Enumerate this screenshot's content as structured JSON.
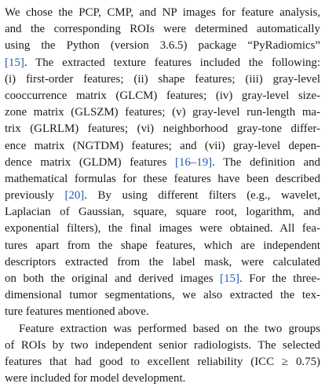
{
  "paragraphs": [
    {
      "indent": false,
      "lines": [
        {
          "justify": true,
          "segments": [
            {
              "t": "We chose the PCP, CMP, and NP images for feature analysis,"
            }
          ]
        },
        {
          "justify": true,
          "segments": [
            {
              "t": "and the corresponding ROIs were determined automatically"
            }
          ]
        },
        {
          "justify": true,
          "segments": [
            {
              "t": "using the Python (version 3.6.5) package “PyRadiomics”"
            }
          ]
        },
        {
          "justify": true,
          "segments": [
            {
              "t": "[15]",
              "cite": true
            },
            {
              "t": ". The extracted texture features included the following:"
            }
          ]
        },
        {
          "justify": true,
          "segments": [
            {
              "t": "(i) first-order features; (ii) shape features; (iii) gray-level"
            }
          ]
        },
        {
          "justify": true,
          "segments": [
            {
              "t": "cooccurrence matrix (GLCM) features; (iv) gray-level size-"
            }
          ]
        },
        {
          "justify": true,
          "segments": [
            {
              "t": "zone matrix (GLSZM) features; (v) gray-level run-length ma-"
            }
          ]
        },
        {
          "justify": true,
          "segments": [
            {
              "t": "trix (GLRLM) features; (vi) neighborhood gray-tone differ-"
            }
          ]
        },
        {
          "justify": true,
          "segments": [
            {
              "t": "ence matrix (NGTDM) features; and (vii) gray-level depen-"
            }
          ]
        },
        {
          "justify": true,
          "segments": [
            {
              "t": "dence matrix (GLDM) features "
            },
            {
              "t": "[16–19]",
              "cite": true
            },
            {
              "t": ". The definition and"
            }
          ]
        },
        {
          "justify": true,
          "segments": [
            {
              "t": "mathematical formulas for these features have been described"
            }
          ]
        },
        {
          "justify": true,
          "segments": [
            {
              "t": "previously "
            },
            {
              "t": "[20]",
              "cite": true
            },
            {
              "t": ". By using different filters (e.g., wavelet,"
            }
          ]
        },
        {
          "justify": true,
          "segments": [
            {
              "t": "Laplacian of Gaussian, square, square root, logarithm, and"
            }
          ]
        },
        {
          "justify": true,
          "segments": [
            {
              "t": "exponential filters), the final images were obtained. All fea-"
            }
          ]
        },
        {
          "justify": true,
          "segments": [
            {
              "t": "tures apart from the shape features, which are independent"
            }
          ]
        },
        {
          "justify": true,
          "segments": [
            {
              "t": "descriptors extracted from the label mask, were calculated"
            }
          ]
        },
        {
          "justify": true,
          "segments": [
            {
              "t": "on both the original and derived images "
            },
            {
              "t": "[15]",
              "cite": true
            },
            {
              "t": ". For the three-"
            }
          ]
        },
        {
          "justify": true,
          "segments": [
            {
              "t": "dimensional tumor segmentations, we also extracted the tex-"
            }
          ]
        },
        {
          "justify": false,
          "segments": [
            {
              "t": "ture features mentioned above."
            }
          ]
        }
      ]
    },
    {
      "indent": true,
      "lines": [
        {
          "justify": true,
          "segments": [
            {
              "t": "Feature extraction was performed based on the two groups"
            }
          ]
        },
        {
          "justify": true,
          "segments": [
            {
              "t": "of ROIs by two independent senior radiologists. The selected"
            }
          ]
        },
        {
          "justify": true,
          "segments": [
            {
              "t": "features that had good to excellent reliability (ICC ≥ 0.75)"
            }
          ]
        },
        {
          "justify": false,
          "segments": [
            {
              "t": "were included for model development."
            }
          ]
        }
      ]
    }
  ],
  "colors": {
    "text": "#1a1a1a",
    "citation": "#2257b8",
    "background": "#ffffff"
  }
}
